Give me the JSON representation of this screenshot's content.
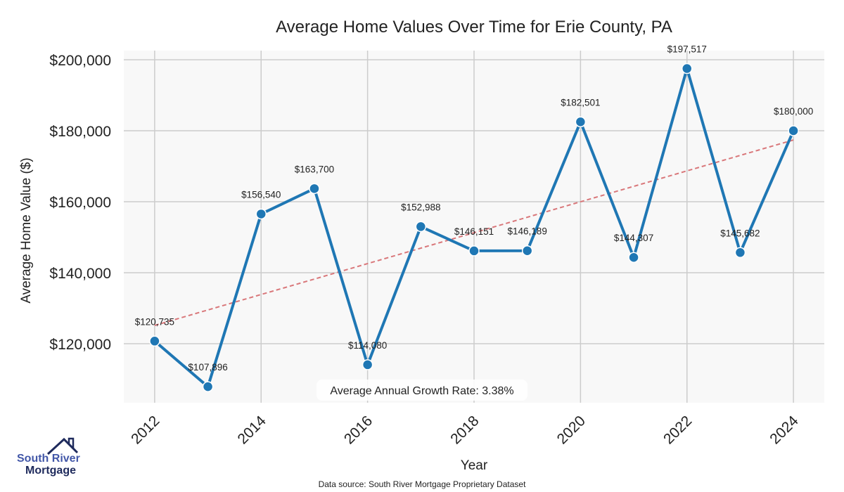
{
  "chart_data": {
    "type": "line",
    "title": "Average Home Values Over Time for Erie County, PA",
    "xlabel": "Year",
    "ylabel": "Average Home Value ($)",
    "x": [
      2012,
      2013,
      2014,
      2015,
      2016,
      2017,
      2018,
      2019,
      2020,
      2021,
      2022,
      2023,
      2024
    ],
    "series": [
      {
        "name": "Average Home Value",
        "values": [
          120735,
          107896,
          156540,
          163700,
          114080,
          152988,
          146151,
          146189,
          182501,
          144307,
          197517,
          145682,
          180000
        ],
        "color": "#1f77b4"
      }
    ],
    "data_labels": [
      "$120,735",
      "$107,896",
      "$156,540",
      "$163,700",
      "$114,080",
      "$152,988",
      "$146,151",
      "$146,189",
      "$182,501",
      "$144,307",
      "$197,517",
      "$145,682",
      "$180,000"
    ],
    "trend": {
      "name": "Trend",
      "start": [
        2012,
        125150
      ],
      "end": [
        2024,
        177400
      ],
      "color": "#d9777a",
      "style": "dashed"
    },
    "xticks": [
      2012,
      2014,
      2016,
      2018,
      2020,
      2022,
      2024
    ],
    "xtick_labels": [
      "2012",
      "2014",
      "2016",
      "2018",
      "2020",
      "2022",
      "2024"
    ],
    "yticks": [
      120000,
      140000,
      160000,
      180000,
      200000
    ],
    "ytick_labels": [
      "$120,000",
      "$140,000",
      "$160,000",
      "$180,000",
      "$200,000"
    ],
    "xlim": [
      2011.42,
      2024.58
    ],
    "ylim": [
      103366,
      202574
    ],
    "grid": true,
    "annotation": "Average Annual Growth Rate: 3.38%",
    "footnote": "Data source: South River Mortgage Proprietary Dataset"
  },
  "logo": {
    "line1": "South River",
    "line2": "Mortgage"
  }
}
